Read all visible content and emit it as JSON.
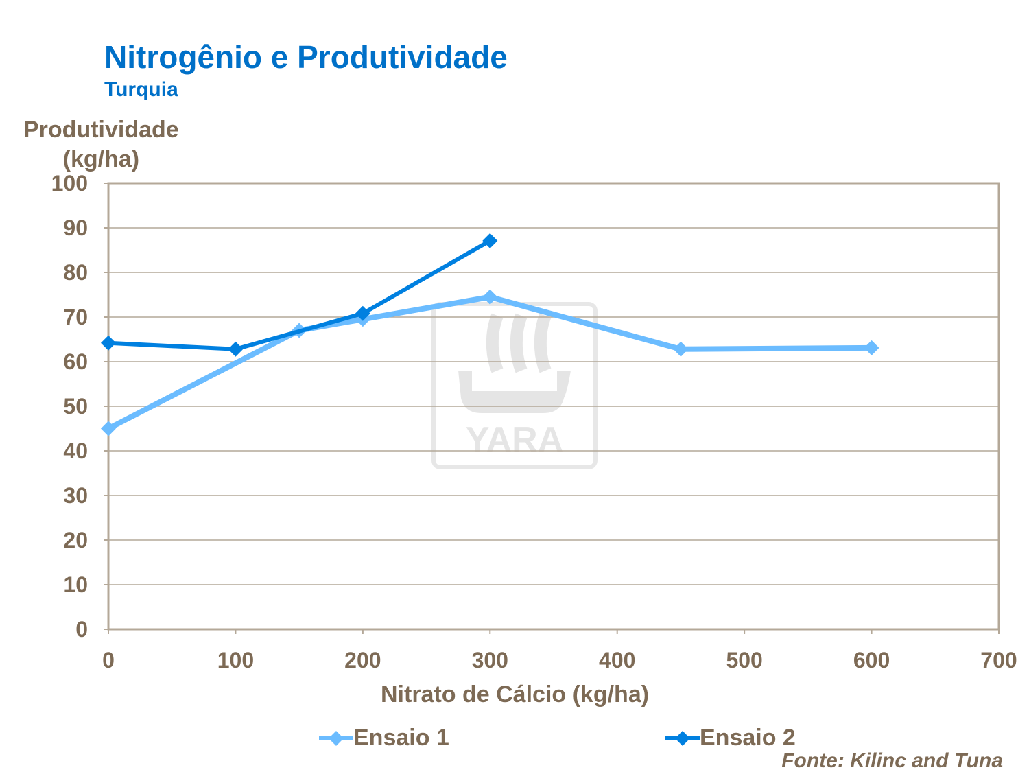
{
  "chart_data": {
    "type": "line",
    "title": "Nitrogênio e Produtividade",
    "subtitle": "Turquia",
    "ylabel": "Produtividade\n(kg/ha)",
    "xlabel": "Nitrato de Cálcio (kg/ha)",
    "xlim": [
      0,
      700
    ],
    "ylim": [
      0,
      100
    ],
    "xticks": [
      0,
      100,
      200,
      300,
      400,
      500,
      600,
      700
    ],
    "yticks": [
      0,
      10,
      20,
      30,
      40,
      50,
      60,
      70,
      80,
      90,
      100
    ],
    "grid": "horizontal",
    "legend": "bottom",
    "series": [
      {
        "name": "Ensaio 1",
        "color": "#6bbcff",
        "x": [
          0,
          150,
          200,
          300,
          450,
          600
        ],
        "y": [
          45,
          67,
          69.5,
          74.5,
          62.8,
          63.1
        ]
      },
      {
        "name": "Ensaio 2",
        "color": "#0080e0",
        "x": [
          0,
          100,
          200,
          300
        ],
        "y": [
          64.2,
          62.8,
          70.8,
          87.1
        ]
      }
    ],
    "source": "Fonte: Kilinc and Tuna",
    "watermark": "YARA"
  }
}
